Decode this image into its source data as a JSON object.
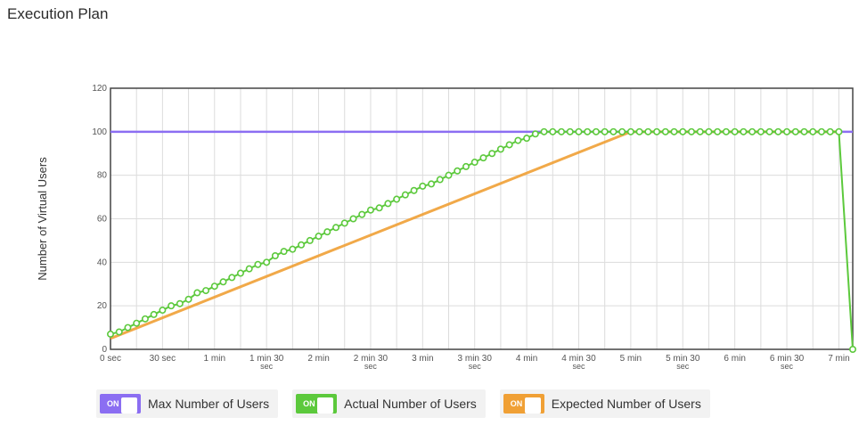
{
  "page": {
    "title": "Execution Plan"
  },
  "legend": [
    {
      "toggle": "ON",
      "label": "Max Number of Users",
      "color": "#8b6ef2"
    },
    {
      "toggle": "ON",
      "label": "Actual Number of Users",
      "color": "#5cc93c"
    },
    {
      "toggle": "ON",
      "label": "Expected Number of Users",
      "color": "#f0a035"
    }
  ],
  "chart_data": {
    "type": "line",
    "title": "",
    "xlabel": "",
    "ylabel": "Number of Virtual Users",
    "xlim": [
      0,
      428
    ],
    "ylim": [
      0,
      120
    ],
    "grid": true,
    "legend_position": "bottom",
    "x_ticks": [
      {
        "value": 0,
        "label": [
          "0 sec"
        ]
      },
      {
        "value": 30,
        "label": [
          "30 sec"
        ]
      },
      {
        "value": 60,
        "label": [
          "1 min"
        ]
      },
      {
        "value": 90,
        "label": [
          "1 min 30",
          "sec"
        ]
      },
      {
        "value": 120,
        "label": [
          "2 min"
        ]
      },
      {
        "value": 150,
        "label": [
          "2 min 30",
          "sec"
        ]
      },
      {
        "value": 180,
        "label": [
          "3 min"
        ]
      },
      {
        "value": 210,
        "label": [
          "3 min 30",
          "sec"
        ]
      },
      {
        "value": 240,
        "label": [
          "4 min"
        ]
      },
      {
        "value": 270,
        "label": [
          "4 min 30",
          "sec"
        ]
      },
      {
        "value": 300,
        "label": [
          "5 min"
        ]
      },
      {
        "value": 330,
        "label": [
          "5 min 30",
          "sec"
        ]
      },
      {
        "value": 360,
        "label": [
          "6 min"
        ]
      },
      {
        "value": 390,
        "label": [
          "6 min 30",
          "sec"
        ]
      },
      {
        "value": 420,
        "label": [
          "7 min"
        ]
      }
    ],
    "y_ticks": [
      0,
      20,
      40,
      60,
      80,
      100,
      120
    ],
    "series": [
      {
        "name": "Max Number of Users",
        "color": "#8b6ef2",
        "x": [
          0,
          428
        ],
        "y": [
          100,
          100
        ]
      },
      {
        "name": "Expected Number of Users",
        "color": "#f0a035",
        "x": [
          0,
          300,
          420
        ],
        "y": [
          5,
          100,
          100
        ]
      },
      {
        "name": "Actual Number of Users",
        "color": "#5cc93c",
        "markers": true,
        "x": [
          0,
          5,
          10,
          15,
          20,
          25,
          30,
          35,
          40,
          45,
          50,
          55,
          60,
          65,
          70,
          75,
          80,
          85,
          90,
          95,
          100,
          105,
          110,
          115,
          120,
          125,
          130,
          135,
          140,
          145,
          150,
          155,
          160,
          165,
          170,
          175,
          180,
          185,
          190,
          195,
          200,
          205,
          210,
          215,
          220,
          225,
          230,
          235,
          240,
          245,
          250,
          255,
          260,
          265,
          270,
          275,
          280,
          285,
          290,
          295,
          300,
          305,
          310,
          315,
          320,
          325,
          330,
          335,
          340,
          345,
          350,
          355,
          360,
          365,
          370,
          375,
          380,
          385,
          390,
          395,
          400,
          405,
          410,
          415,
          420,
          428
        ],
        "y": [
          7,
          8,
          10,
          12,
          14,
          16,
          18,
          20,
          21,
          23,
          26,
          27,
          29,
          31,
          33,
          35,
          37,
          39,
          40,
          43,
          45,
          46,
          48,
          50,
          52,
          54,
          56,
          58,
          60,
          62,
          64,
          65,
          67,
          69,
          71,
          73,
          75,
          76,
          78,
          80,
          82,
          84,
          86,
          88,
          90,
          92,
          94,
          96,
          97,
          99,
          100,
          100,
          100,
          100,
          100,
          100,
          100,
          100,
          100,
          100,
          100,
          100,
          100,
          100,
          100,
          100,
          100,
          100,
          100,
          100,
          100,
          100,
          100,
          100,
          100,
          100,
          100,
          100,
          100,
          100,
          100,
          100,
          100,
          100,
          100,
          0
        ]
      }
    ]
  }
}
